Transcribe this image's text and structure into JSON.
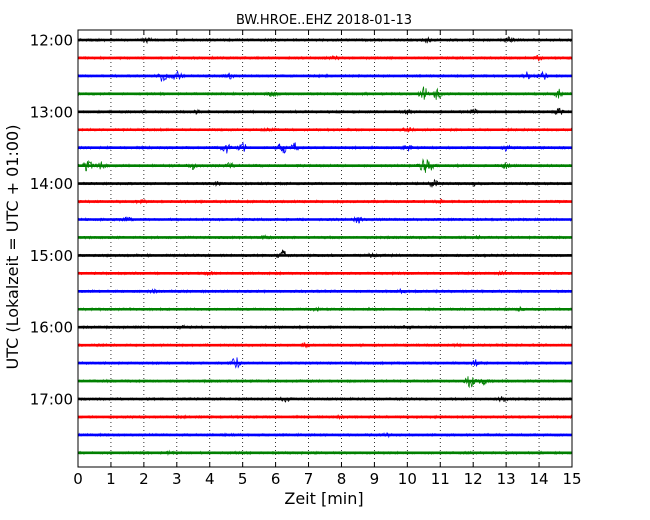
{
  "chart_data": {
    "type": "line",
    "title": "BW.HROE..EHZ 2018-01-13",
    "xlabel": "Zeit  [min]",
    "ylabel": "UTC (Lokalzeit = UTC + 01:00)",
    "xlim": [
      0,
      15
    ],
    "x_ticks": [
      "0",
      "1",
      "2",
      "3",
      "4",
      "5",
      "6",
      "7",
      "8",
      "9",
      "10",
      "11",
      "12",
      "13",
      "14",
      "15"
    ],
    "y_tick_labels": [
      "12:00",
      "13:00",
      "14:00",
      "15:00",
      "16:00",
      "17:00"
    ],
    "y_tick_traces": [
      0,
      4,
      8,
      12,
      16,
      20
    ],
    "grid": "x-dotted",
    "trace_colors": [
      "#000000",
      "#ff0000",
      "#0000ff",
      "#008000"
    ],
    "trace_interval_minutes": 15,
    "traces": [
      {
        "start": "12:00",
        "events": [
          [
            2.1,
            0.25
          ],
          [
            10.6,
            0.3
          ],
          [
            13.1,
            0.35
          ]
        ]
      },
      {
        "start": "12:15",
        "events": [
          [
            14.0,
            0.35
          ],
          [
            7.8,
            0.2
          ]
        ]
      },
      {
        "start": "12:30",
        "events": [
          [
            2.6,
            0.9
          ],
          [
            3.0,
            0.65
          ],
          [
            4.6,
            0.3
          ],
          [
            13.6,
            0.6
          ],
          [
            14.1,
            0.55
          ]
        ]
      },
      {
        "start": "12:45",
        "events": [
          [
            5.9,
            0.3
          ],
          [
            10.5,
            0.9
          ],
          [
            10.9,
            0.75
          ],
          [
            14.6,
            0.6
          ]
        ]
      },
      {
        "start": "13:00",
        "events": [
          [
            3.6,
            0.4
          ],
          [
            10.0,
            0.4
          ],
          [
            12.0,
            0.35
          ],
          [
            14.6,
            0.4
          ]
        ]
      },
      {
        "start": "13:15",
        "events": [
          [
            10.0,
            0.3
          ],
          [
            5.8,
            0.15
          ]
        ]
      },
      {
        "start": "13:30",
        "events": [
          [
            4.5,
            1.0
          ],
          [
            5.0,
            0.7
          ],
          [
            6.2,
            0.9
          ],
          [
            6.6,
            0.7
          ],
          [
            10.0,
            0.4
          ],
          [
            13.0,
            0.35
          ]
        ]
      },
      {
        "start": "13:45",
        "events": [
          [
            0.3,
            0.8
          ],
          [
            0.7,
            0.5
          ],
          [
            3.5,
            0.4
          ],
          [
            4.6,
            0.35
          ],
          [
            10.5,
            0.9
          ],
          [
            10.7,
            0.55
          ],
          [
            13.0,
            0.35
          ]
        ]
      },
      {
        "start": "14:00",
        "events": [
          [
            10.8,
            0.45
          ],
          [
            12.1,
            0.25
          ],
          [
            4.2,
            0.2
          ]
        ]
      },
      {
        "start": "14:15",
        "events": [
          [
            1.9,
            0.2
          ],
          [
            11.0,
            0.2
          ]
        ]
      },
      {
        "start": "14:30",
        "events": [
          [
            8.5,
            0.4
          ],
          [
            1.5,
            0.2
          ]
        ]
      },
      {
        "start": "14:45",
        "events": [
          [
            5.7,
            0.25
          ],
          [
            12.1,
            0.2
          ]
        ]
      },
      {
        "start": "15:00",
        "events": [
          [
            6.2,
            0.75
          ],
          [
            8.9,
            0.25
          ]
        ]
      },
      {
        "start": "15:15",
        "events": [
          [
            4.0,
            0.2
          ],
          [
            12.9,
            0.2
          ]
        ]
      },
      {
        "start": "15:30",
        "events": [
          [
            9.8,
            0.25
          ],
          [
            2.3,
            0.15
          ]
        ]
      },
      {
        "start": "15:45",
        "events": [
          [
            7.2,
            0.2
          ],
          [
            13.4,
            0.2
          ]
        ]
      },
      {
        "start": "16:00",
        "events": [
          [
            10.0,
            0.25
          ],
          [
            3.1,
            0.15
          ]
        ]
      },
      {
        "start": "16:15",
        "events": [
          [
            6.9,
            0.2
          ],
          [
            11.5,
            0.15
          ]
        ]
      },
      {
        "start": "16:30",
        "events": [
          [
            4.8,
            0.85
          ],
          [
            12.1,
            0.45
          ]
        ]
      },
      {
        "start": "16:45",
        "events": [
          [
            11.9,
            0.8
          ],
          [
            12.3,
            0.4
          ]
        ]
      },
      {
        "start": "17:00",
        "events": [
          [
            6.3,
            0.3
          ],
          [
            12.9,
            0.3
          ]
        ]
      },
      {
        "start": "17:15",
        "events": [
          [
            8.0,
            0.15
          ]
        ]
      },
      {
        "start": "17:30",
        "events": [
          [
            9.4,
            0.15
          ]
        ]
      },
      {
        "start": "17:45",
        "events": [
          [
            2.8,
            0.15
          ]
        ]
      }
    ]
  }
}
